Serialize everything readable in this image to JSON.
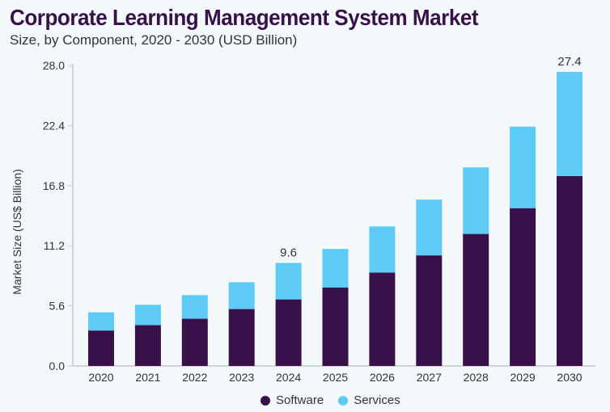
{
  "chart_data": {
    "type": "bar",
    "stacked": true,
    "title": "Corporate Learning Management System Market",
    "subtitle": "Size, by Component, 2020 - 2030 (USD Billion)",
    "xlabel": "",
    "ylabel": "Market Size (US$ Billion)",
    "ylim": [
      0,
      28.0
    ],
    "yticks": [
      "0.0",
      "5.6",
      "11.2",
      "16.8",
      "22.4",
      "28.0"
    ],
    "grid": false,
    "legend_position": "bottom",
    "categories": [
      "2020",
      "2021",
      "2022",
      "2023",
      "2024",
      "2025",
      "2026",
      "2027",
      "2028",
      "2029",
      "2030"
    ],
    "series": [
      {
        "name": "Software",
        "color": "#38114a",
        "values": [
          3.3,
          3.8,
          4.4,
          5.3,
          6.2,
          7.3,
          8.7,
          10.3,
          12.3,
          14.7,
          17.7
        ]
      },
      {
        "name": "Services",
        "color": "#5ecbf7",
        "values": [
          1.7,
          1.9,
          2.2,
          2.5,
          3.4,
          3.6,
          4.3,
          5.2,
          6.2,
          7.6,
          9.7
        ]
      }
    ],
    "annotations": [
      {
        "category": "2024",
        "text": "9.6"
      },
      {
        "category": "2030",
        "text": "27.4"
      }
    ]
  }
}
